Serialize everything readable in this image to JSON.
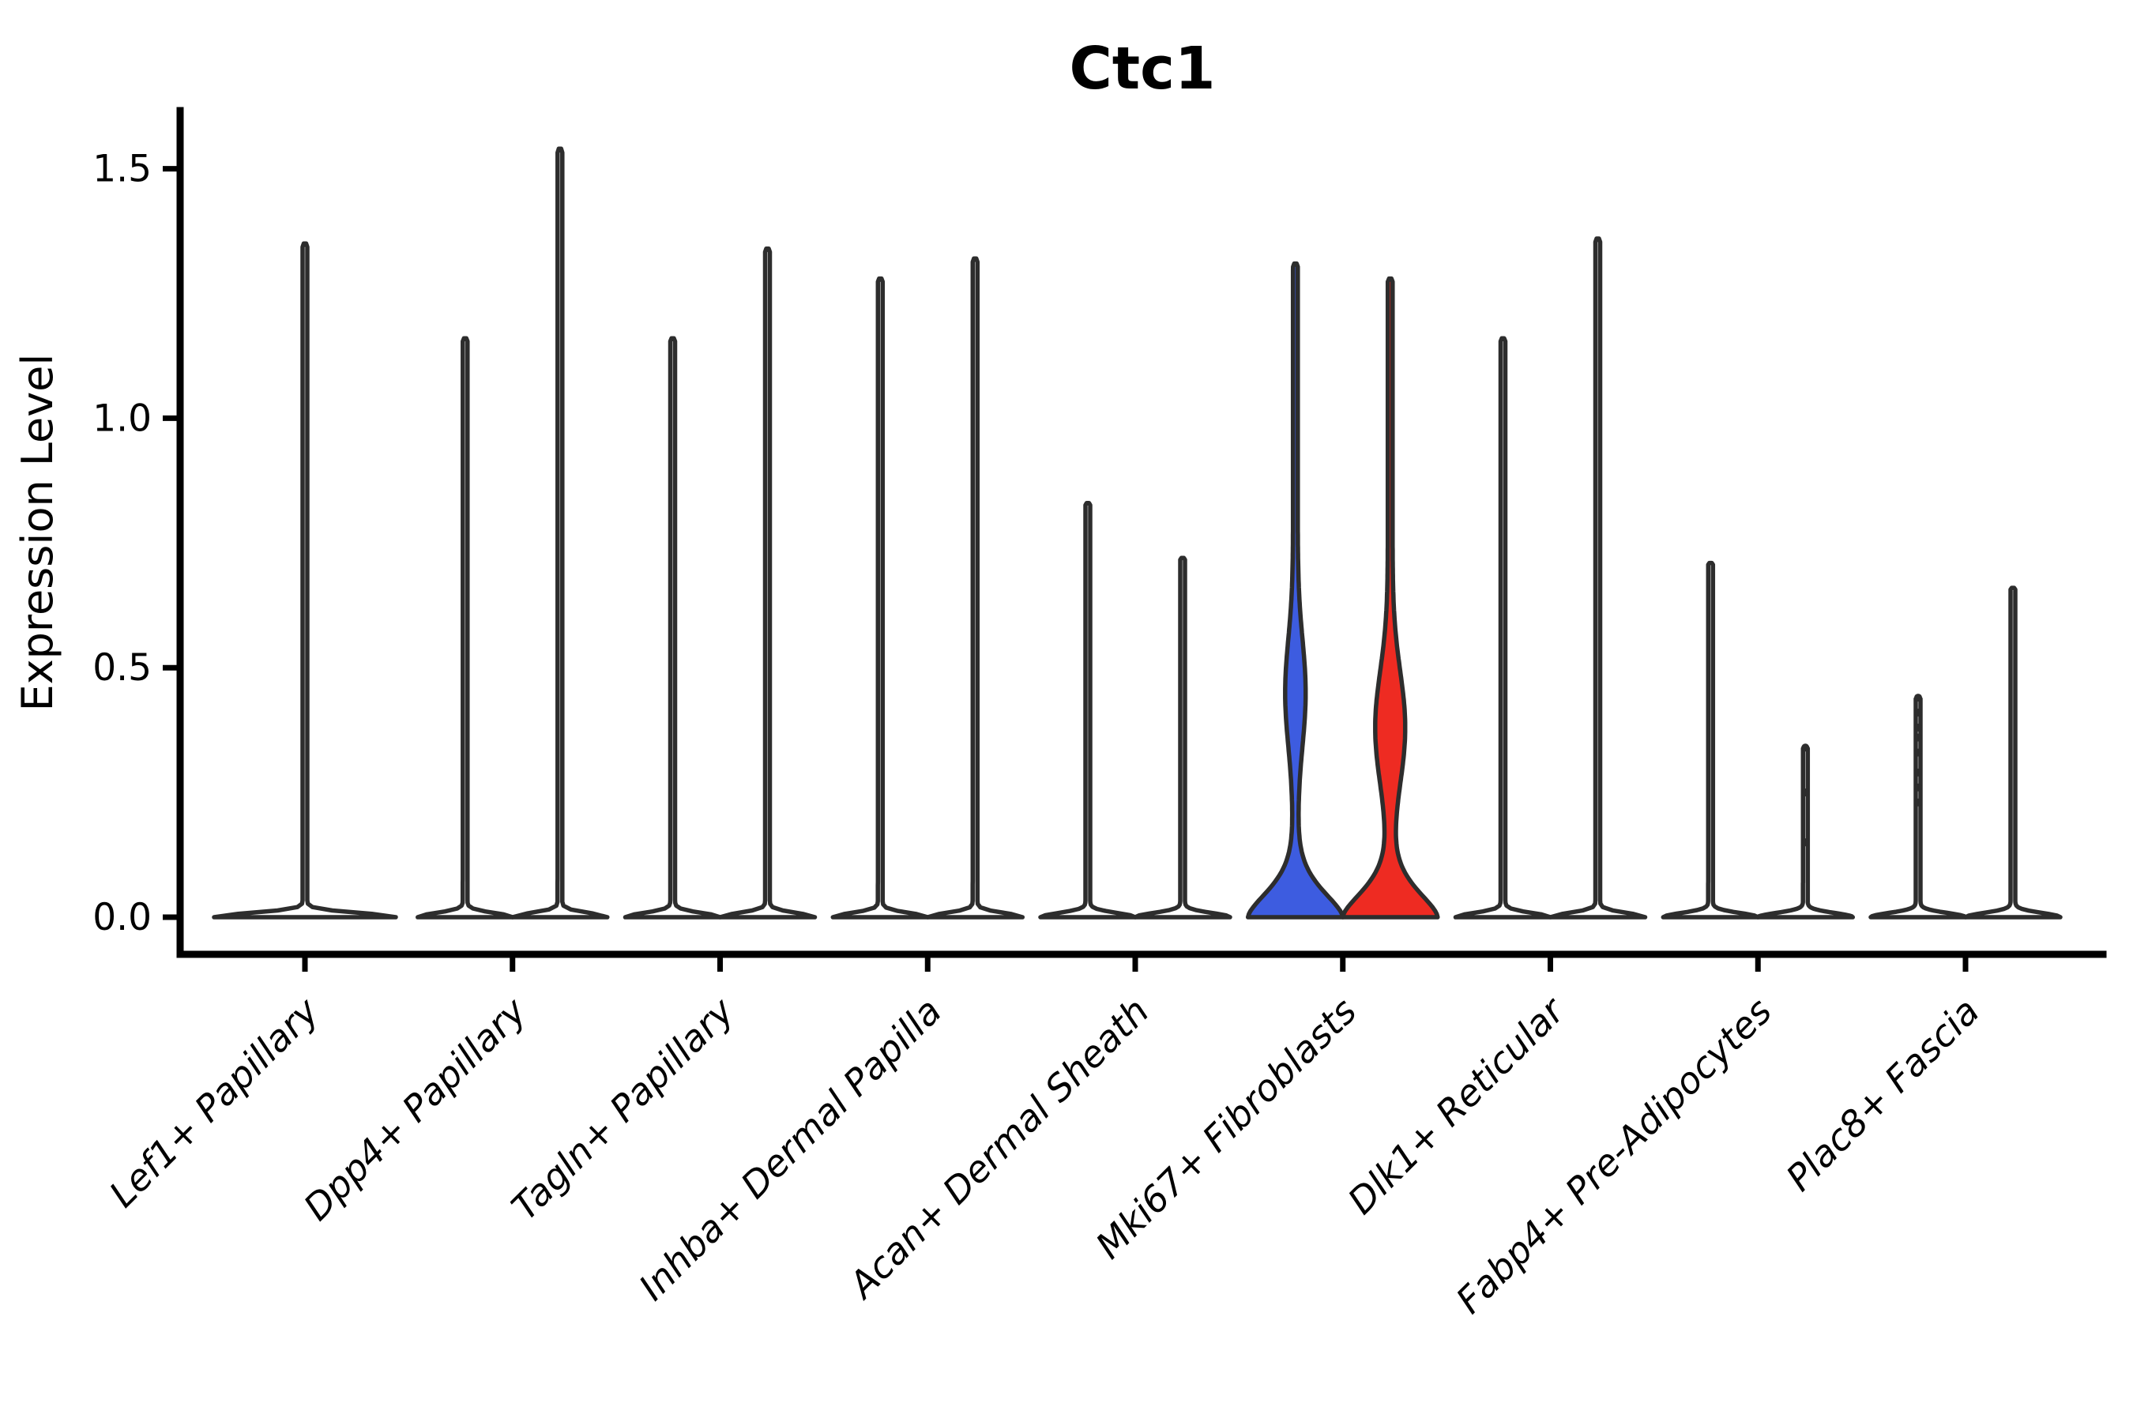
{
  "chart_data": {
    "type": "violin",
    "title": "Ctc1",
    "ylabel": "Expression Level",
    "xlabel": "",
    "ylim": [
      0,
      1.6
    ],
    "yticks": [
      "0.0",
      "0.5",
      "1.0",
      "1.5"
    ],
    "ytick_values": [
      0,
      0.5,
      1.0,
      1.5
    ],
    "grid": "off",
    "legend": "none",
    "style": {
      "outline_color": "#2d2d2d",
      "axis_color": "#000000",
      "plain_fill": "#ffffff",
      "split_left_fill": "#3d5ce0",
      "split_right_fill": "#ee2b22",
      "background": "#ffffff"
    },
    "categories": [
      {
        "label": "Lef1+ Papillary",
        "violins": [
          {
            "side": "center",
            "fill": "#ffffff",
            "max": 1.35,
            "base_halfwidth": 112
          }
        ]
      },
      {
        "label": "Dpp4+ Papillary",
        "violins": [
          {
            "side": "left",
            "fill": "#ffffff",
            "max": 1.16
          },
          {
            "side": "right",
            "fill": "#ffffff",
            "max": 1.54
          }
        ]
      },
      {
        "label": "Tagln+ Papillary",
        "violins": [
          {
            "side": "left",
            "fill": "#ffffff",
            "max": 1.16
          },
          {
            "side": "right",
            "fill": "#ffffff",
            "max": 1.34
          }
        ]
      },
      {
        "label": "Inhba+ Dermal Papilla",
        "violins": [
          {
            "side": "left",
            "fill": "#ffffff",
            "max": 1.28
          },
          {
            "side": "right",
            "fill": "#ffffff",
            "max": 1.32
          }
        ]
      },
      {
        "label": "Acan+ Dermal Sheath",
        "violins": [
          {
            "side": "left",
            "fill": "#ffffff",
            "max": 0.83
          },
          {
            "side": "right",
            "fill": "#ffffff",
            "max": 0.72
          }
        ]
      },
      {
        "label": "Mki67+ Fibroblasts",
        "violins": [
          {
            "side": "left",
            "fill": "#3d5ce0",
            "max": 1.31,
            "bulge": {
              "center": 0.45,
              "sigma": 0.15,
              "halfwidth": 10
            },
            "base_sigma": 0.075,
            "base_power": 1.6
          },
          {
            "side": "right",
            "fill": "#ee2b22",
            "max": 1.28,
            "bulge": {
              "center": 0.38,
              "sigma": 0.16,
              "halfwidth": 16
            },
            "base_sigma": 0.075,
            "base_power": 1.6
          }
        ]
      },
      {
        "label": "Dlk1+ Reticular",
        "violins": [
          {
            "side": "left",
            "fill": "#ffffff",
            "max": 1.16
          },
          {
            "side": "right",
            "fill": "#ffffff",
            "max": 1.36
          }
        ]
      },
      {
        "label": "Fabp4+ Pre-Adipocytes",
        "violins": [
          {
            "side": "left",
            "fill": "#ffffff",
            "max": 0.71
          },
          {
            "side": "right",
            "fill": "#ffffff",
            "max": 0.34,
            "dots": [
              0.34,
              0.25,
              0.15
            ]
          }
        ]
      },
      {
        "label": "Plac8+ Fascia",
        "violins": [
          {
            "side": "left",
            "fill": "#ffffff",
            "max": 0.44,
            "dots": [
              0.44,
              0.41,
              0.38,
              0.36,
              0.33,
              0.29,
              0.26,
              0.23
            ]
          },
          {
            "side": "right",
            "fill": "#ffffff",
            "max": 0.66
          }
        ]
      }
    ]
  }
}
